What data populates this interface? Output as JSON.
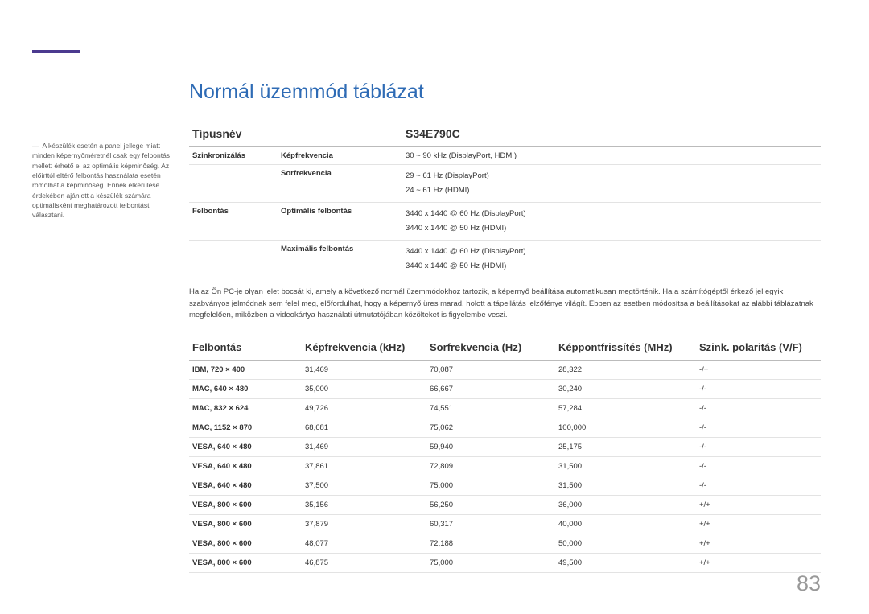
{
  "page_number": "83",
  "title": "Normál üzemmód táblázat",
  "sidebar_note": "A készülék esetén a panel jellege miatt minden képernyőméretnél csak egy felbontás mellett érhető el az optimális képminőség. Az előírttól eltérő felbontás használata esetén romolhat a képminőség. Ennek elkerülése érdekében ajánlott a készülék számára optimálisként meghatározott felbontást választani.",
  "spec_header": {
    "type": "Típusnév",
    "model": "S34E790C"
  },
  "specs": {
    "sync_label": "Szinkronizálás",
    "hfreq_label": "Képfrekvencia",
    "hfreq_value": "30 ~ 90 kHz (DisplayPort, HDMI)",
    "vfreq_label": "Sorfrekvencia",
    "vfreq_value": "29 ~ 61 Hz (DisplayPort)\n24 ~ 61 Hz (HDMI)",
    "res_label": "Felbontás",
    "opt_label": "Optimális felbontás",
    "opt_value": "3440 x 1440 @ 60 Hz (DisplayPort)\n3440 x 1440 @ 50 Hz (HDMI)",
    "max_label": "Maximális felbontás",
    "max_value": "3440 x 1440 @ 60 Hz (DisplayPort)\n3440 x 1440 @ 50 Hz (HDMI)"
  },
  "middle_note": "Ha az Ön PC-je olyan jelet bocsát ki, amely a következő normál üzemmódokhoz tartozik, a képernyő beállítása automatikusan megtörténik. Ha a számítógéptől érkező jel egyik szabványos jelmódnak sem felel meg, előfordulhat, hogy a képernyő üres marad, holott a tápellátás jelzőfénye világít. Ebben az esetben módosítsa a beállításokat az alábbi táblázatnak megfelelően, miközben a videokártya használati útmutatójában közölteket is figyelembe veszi.",
  "mode_headers": {
    "res": "Felbontás",
    "hfreq": "Képfrekvencia (kHz)",
    "vfreq": "Sorfrekvencia (Hz)",
    "pclk": "Képpontfrissítés (MHz)",
    "pol": "Szink. polaritás (V/F)"
  },
  "modes": [
    {
      "res": "IBM, 720 × 400",
      "h": "31,469",
      "v": "70,087",
      "p": "28,322",
      "pol": "-/+"
    },
    {
      "res": "MAC, 640 × 480",
      "h": "35,000",
      "v": "66,667",
      "p": "30,240",
      "pol": "-/-"
    },
    {
      "res": "MAC, 832 × 624",
      "h": "49,726",
      "v": "74,551",
      "p": "57,284",
      "pol": "-/-"
    },
    {
      "res": "MAC, 1152 × 870",
      "h": "68,681",
      "v": "75,062",
      "p": "100,000",
      "pol": "-/-"
    },
    {
      "res": "VESA, 640 × 480",
      "h": "31,469",
      "v": "59,940",
      "p": "25,175",
      "pol": "-/-"
    },
    {
      "res": "VESA, 640 × 480",
      "h": "37,861",
      "v": "72,809",
      "p": "31,500",
      "pol": "-/-"
    },
    {
      "res": "VESA, 640 × 480",
      "h": "37,500",
      "v": "75,000",
      "p": "31,500",
      "pol": "-/-"
    },
    {
      "res": "VESA, 800 × 600",
      "h": "35,156",
      "v": "56,250",
      "p": "36,000",
      "pol": "+/+"
    },
    {
      "res": "VESA, 800 × 600",
      "h": "37,879",
      "v": "60,317",
      "p": "40,000",
      "pol": "+/+"
    },
    {
      "res": "VESA, 800 × 600",
      "h": "48,077",
      "v": "72,188",
      "p": "50,000",
      "pol": "+/+"
    },
    {
      "res": "VESA, 800 × 600",
      "h": "46,875",
      "v": "75,000",
      "p": "49,500",
      "pol": "+/+"
    }
  ]
}
